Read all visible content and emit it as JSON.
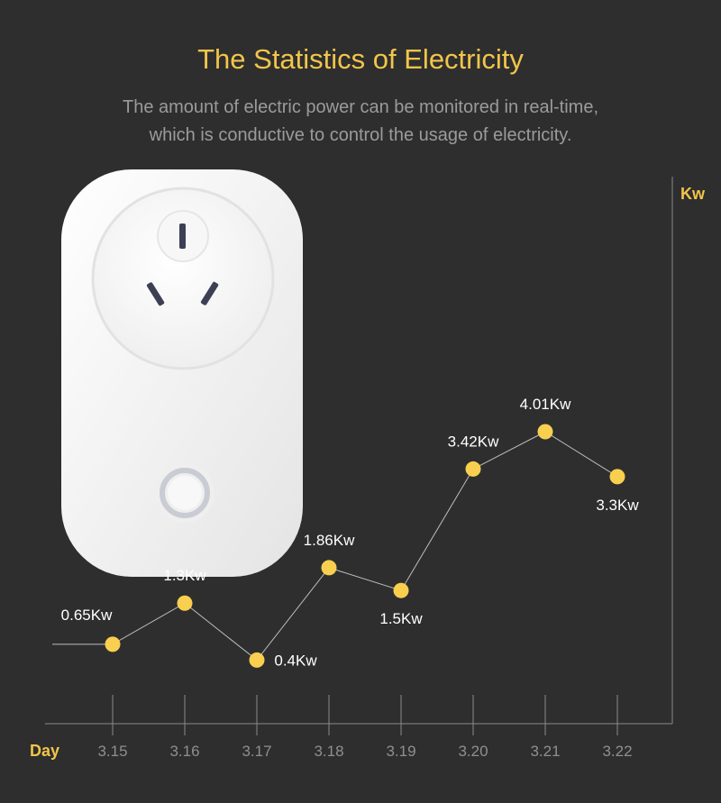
{
  "header": {
    "title": "The Statistics of Electricity",
    "subtitle_line1": "The amount of electric power can be monitored in real-time,",
    "subtitle_line2": "which is conductive to control the usage of electricity."
  },
  "colors": {
    "background": "#2e2e2e",
    "accent": "#f2c54a",
    "point": "#f8cf4f",
    "axis": "#8a8a8a",
    "label": "#ffffff",
    "tick_label": "#8f8f8f",
    "plug_body": "#f5f5f5"
  },
  "product": {
    "icon": "smart-plug-icon"
  },
  "chart_data": {
    "type": "line",
    "xlabel": "Day",
    "ylabel": "Kw",
    "categories": [
      "3.15",
      "3.16",
      "3.17",
      "3.18",
      "3.19",
      "3.20",
      "3.21",
      "3.22"
    ],
    "values": [
      0.65,
      1.3,
      0.4,
      1.86,
      1.5,
      3.42,
      4.01,
      3.3
    ],
    "data_labels": [
      "0.65Kw",
      "1.3Kw",
      "0.4Kw",
      "1.86Kw",
      "1.5Kw",
      "3.42Kw",
      "4.01Kw",
      "3.3Kw"
    ],
    "grid": false,
    "legend": "none"
  }
}
